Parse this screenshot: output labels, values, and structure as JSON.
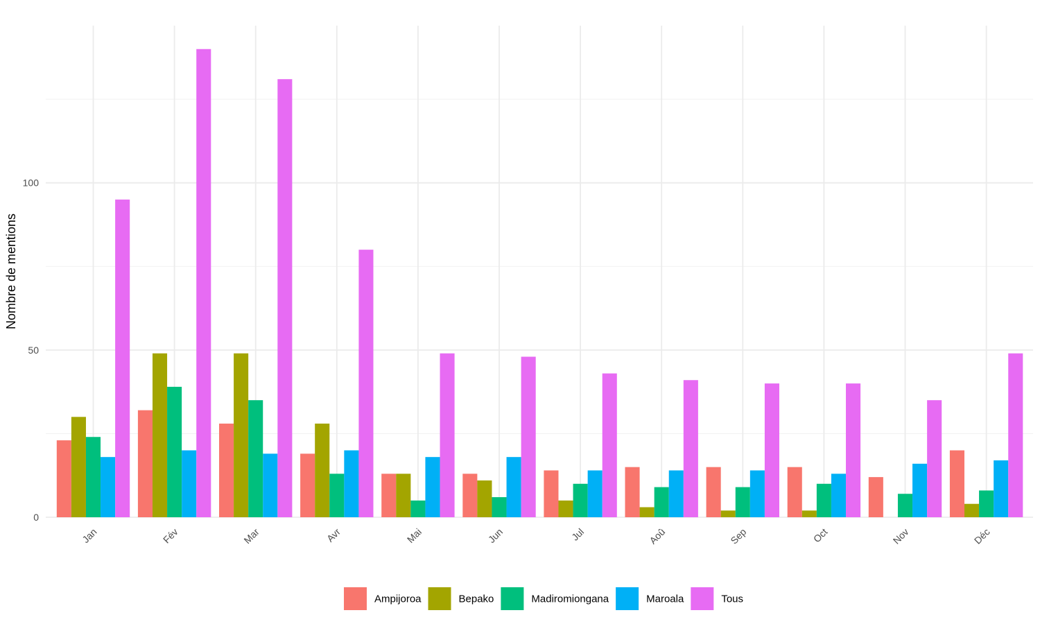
{
  "chart_data": {
    "type": "bar",
    "categories": [
      "Jan",
      "Fév",
      "Mar",
      "Avr",
      "Mai",
      "Jun",
      "Jul",
      "Aoû",
      "Sep",
      "Oct",
      "Nov",
      "Déc"
    ],
    "series": [
      {
        "name": "Ampijoroa",
        "color": "#F8766D",
        "values": [
          23,
          32,
          28,
          19,
          13,
          13,
          14,
          15,
          15,
          15,
          12,
          20
        ]
      },
      {
        "name": "Bepako",
        "color": "#A3A500",
        "values": [
          30,
          49,
          49,
          28,
          13,
          11,
          5,
          3,
          2,
          2,
          0,
          4
        ]
      },
      {
        "name": "Madiromiongana",
        "color": "#00BF7D",
        "values": [
          24,
          39,
          35,
          13,
          5,
          6,
          10,
          9,
          9,
          10,
          7,
          8
        ]
      },
      {
        "name": "Maroala",
        "color": "#00B0F6",
        "values": [
          18,
          20,
          19,
          20,
          18,
          18,
          14,
          14,
          14,
          13,
          16,
          17
        ]
      },
      {
        "name": "Tous",
        "color": "#E76BF3",
        "values": [
          95,
          140,
          131,
          80,
          49,
          48,
          43,
          41,
          40,
          40,
          35,
          49
        ]
      }
    ],
    "title": "",
    "xlabel": "",
    "ylabel": "Nombre de mentions",
    "ylim": [
      0,
      147
    ],
    "yticks": [
      0,
      50,
      100
    ],
    "grid": true,
    "legend_position": "bottom",
    "theme": "minimal"
  }
}
